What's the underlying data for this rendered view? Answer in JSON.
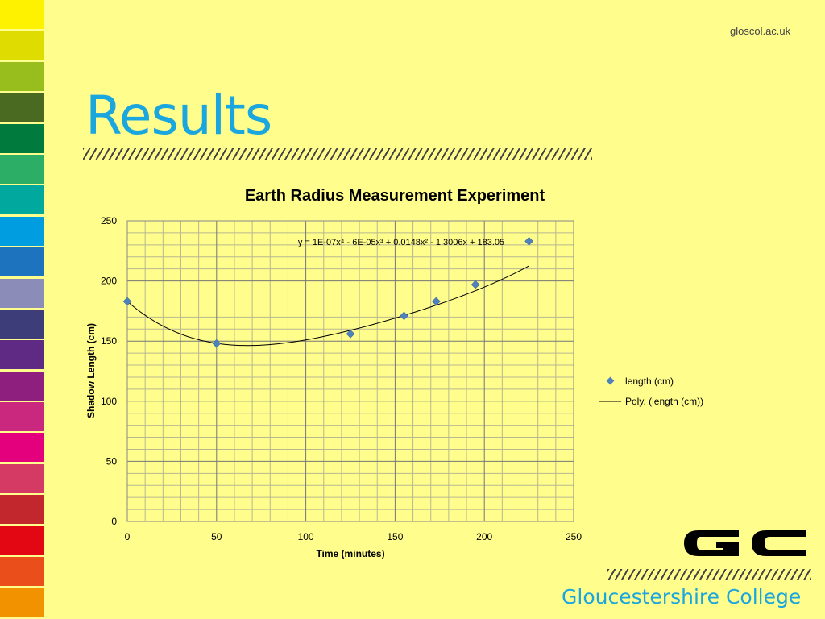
{
  "header": {
    "site_url": "gloscol.ac.uk"
  },
  "slide": {
    "title": "Results"
  },
  "footer": {
    "college_name": "Gloucestershire College"
  },
  "logo_alt": "GC",
  "colors": {
    "background": "#FFFD8C",
    "title": "#1AA6DE",
    "marker": "#4F81BD",
    "strip": [
      "#FFF200",
      "#DEDC00",
      "#98BE1E",
      "#4A6A22",
      "#007A3D",
      "#2DAE66",
      "#00A89D",
      "#009DE0",
      "#1E73BE",
      "#8C8CB8",
      "#3D3D7A",
      "#5E2A84",
      "#8E1F7F",
      "#C9287E",
      "#E4007C",
      "#D43A63",
      "#C1272D",
      "#E30613",
      "#E94E1B",
      "#F39200"
    ]
  },
  "chart_data": {
    "type": "scatter",
    "title": "Earth Radius Measurement Experiment",
    "xlabel": "Time (minutes)",
    "ylabel": "Shadow Length (cm)",
    "xlim": [
      0,
      250
    ],
    "ylim": [
      0,
      250
    ],
    "x_ticks": [
      "0",
      "50",
      "100",
      "150",
      "200",
      "250"
    ],
    "y_ticks": [
      "0",
      "50",
      "100",
      "150",
      "200",
      "250"
    ],
    "series": [
      {
        "name": "length (cm)",
        "x": [
          0,
          50,
          125,
          155,
          173,
          195,
          225
        ],
        "y": [
          183,
          148,
          156,
          171,
          183,
          197,
          233
        ]
      }
    ],
    "trendline": {
      "name": "Poly. (length (cm))",
      "equation": "y = 1E-07x⁴ - 6E-05x³ + 0.0148x² - 1.3006x + 183.05",
      "coefficients": [
        1e-07,
        -6e-05,
        0.0148,
        -1.3006,
        183.05
      ]
    },
    "grid": true,
    "legend_position": "right"
  }
}
